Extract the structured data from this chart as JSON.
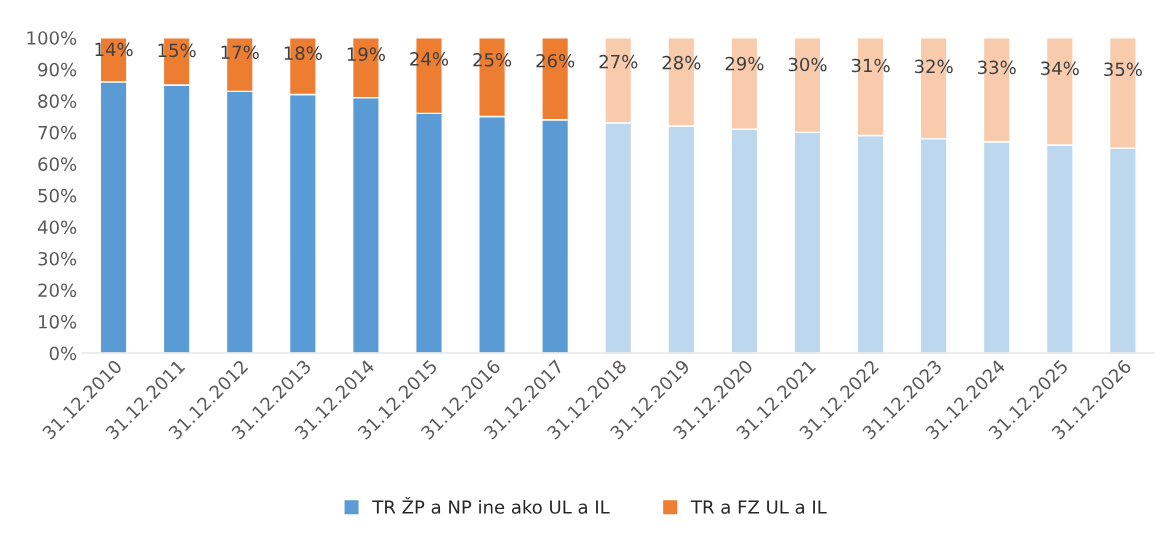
{
  "chart_data": {
    "type": "bar",
    "stacked": true,
    "categories": [
      "31.12.2010",
      "31.12.2011",
      "31.12.2012",
      "31.12.2013",
      "31.12.2014",
      "31.12.2015",
      "31.12.2016",
      "31.12.2017",
      "31.12.2018",
      "31.12.2019",
      "31.12.2020",
      "31.12.2021",
      "31.12.2022",
      "31.12.2023",
      "31.12.2024",
      "31.12.2025",
      "31.12.2026"
    ],
    "series": [
      {
        "name": "TR ŽP a NP ine ako UL a IL",
        "color": "#5b9bd5",
        "colors": [
          "#5b9bd5",
          "#5b9bd5",
          "#5b9bd5",
          "#5b9bd5",
          "#5b9bd5",
          "#5b9bd5",
          "#5b9bd5",
          "#5b9bd5",
          "#bdd7ee",
          "#bdd7ee",
          "#bdd7ee",
          "#bdd7ee",
          "#bdd7ee",
          "#bdd7ee",
          "#bdd7ee",
          "#bdd7ee",
          "#bdd7ee"
        ],
        "values": [
          86,
          85,
          83,
          82,
          81,
          76,
          75,
          74,
          73,
          72,
          71,
          70,
          69,
          68,
          67,
          66,
          65
        ]
      },
      {
        "name": "TR a FZ UL a IL",
        "color": "#ed7d31",
        "colors": [
          "#ed7d31",
          "#ed7d31",
          "#ed7d31",
          "#ed7d31",
          "#ed7d31",
          "#ed7d31",
          "#ed7d31",
          "#ed7d31",
          "#f8cbad",
          "#f8cbad",
          "#f8cbad",
          "#f8cbad",
          "#f8cbad",
          "#f8cbad",
          "#f8cbad",
          "#f8cbad",
          "#f8cbad"
        ],
        "values": [
          14,
          15,
          17,
          18,
          19,
          24,
          25,
          26,
          27,
          28,
          29,
          30,
          31,
          32,
          33,
          34,
          35
        ],
        "value_labels": [
          "14%",
          "15%",
          "17%",
          "18%",
          "19%",
          "24%",
          "25%",
          "26%",
          "27%",
          "28%",
          "29%",
          "30%",
          "31%",
          "32%",
          "33%",
          "34%",
          "35%"
        ]
      }
    ],
    "ylim": [
      0,
      100
    ],
    "yticks": [
      {
        "value": 0,
        "label": "0%"
      },
      {
        "value": 10,
        "label": "10%"
      },
      {
        "value": 20,
        "label": "20%"
      },
      {
        "value": 30,
        "label": "30%"
      },
      {
        "value": 40,
        "label": "40%"
      },
      {
        "value": 50,
        "label": "50%"
      },
      {
        "value": 60,
        "label": "60%"
      },
      {
        "value": 70,
        "label": "70%"
      },
      {
        "value": 80,
        "label": "80%"
      },
      {
        "value": 90,
        "label": "90%"
      },
      {
        "value": 100,
        "label": "100%"
      }
    ],
    "legend": "bottom"
  }
}
